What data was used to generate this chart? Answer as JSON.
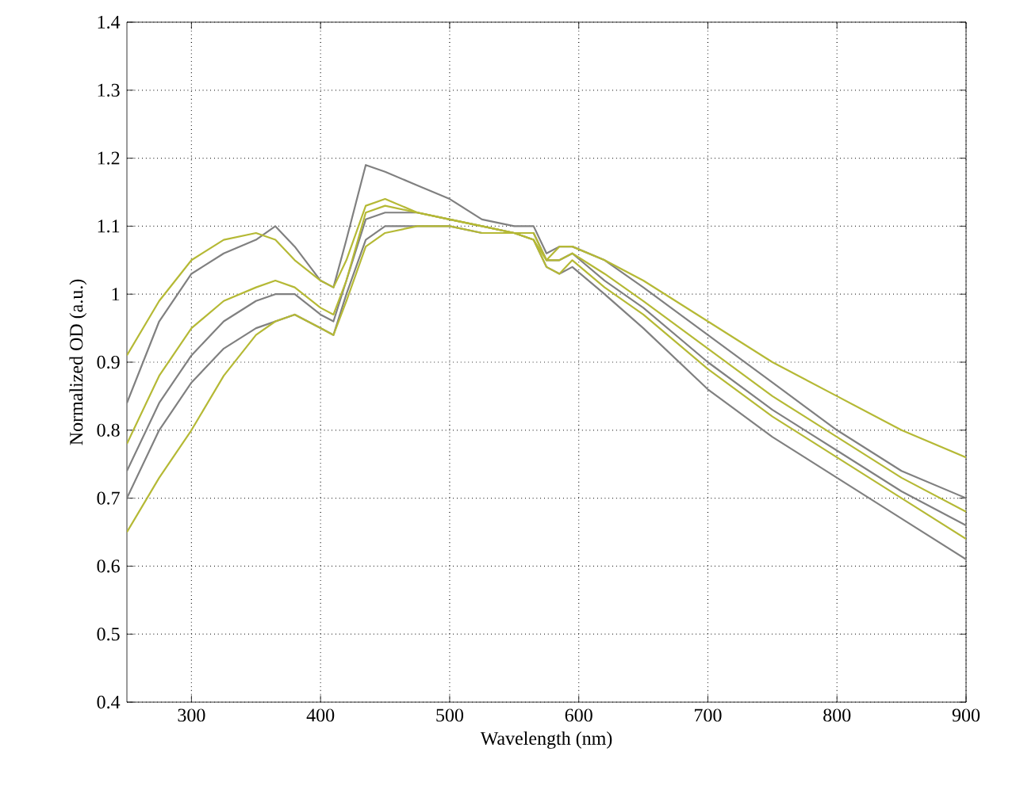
{
  "chart_data": {
    "type": "line",
    "xlabel": "Wavelength (nm)",
    "ylabel": "Normalized OD (a.u.)",
    "x": [
      250,
      275,
      300,
      325,
      350,
      365,
      380,
      400,
      410,
      420,
      435,
      450,
      475,
      500,
      525,
      550,
      565,
      575,
      585,
      595,
      620,
      650,
      700,
      750,
      800,
      850,
      900
    ],
    "series": [
      {
        "color": "#808080",
        "values": [
          0.84,
          0.96,
          1.03,
          1.06,
          1.08,
          1.1,
          1.07,
          1.02,
          1.01,
          1.08,
          1.19,
          1.18,
          1.16,
          1.14,
          1.11,
          1.1,
          1.1,
          1.06,
          1.07,
          1.07,
          1.05,
          1.01,
          0.94,
          0.87,
          0.8,
          0.74,
          0.7
        ]
      },
      {
        "color": "#808080",
        "values": [
          0.74,
          0.84,
          0.91,
          0.96,
          0.99,
          1.0,
          1.0,
          0.97,
          0.96,
          1.02,
          1.11,
          1.12,
          1.12,
          1.11,
          1.1,
          1.09,
          1.09,
          1.05,
          1.05,
          1.06,
          1.02,
          0.98,
          0.9,
          0.83,
          0.77,
          0.71,
          0.66
        ]
      },
      {
        "color": "#808080",
        "values": [
          0.7,
          0.8,
          0.87,
          0.92,
          0.95,
          0.96,
          0.97,
          0.95,
          0.94,
          1.0,
          1.08,
          1.1,
          1.1,
          1.1,
          1.09,
          1.09,
          1.08,
          1.04,
          1.03,
          1.04,
          1.0,
          0.95,
          0.86,
          0.79,
          0.73,
          0.67,
          0.61
        ]
      },
      {
        "color": "#b5b935",
        "values": [
          0.91,
          0.99,
          1.05,
          1.08,
          1.09,
          1.08,
          1.05,
          1.02,
          1.01,
          1.05,
          1.13,
          1.14,
          1.12,
          1.11,
          1.1,
          1.09,
          1.08,
          1.05,
          1.07,
          1.07,
          1.05,
          1.02,
          0.96,
          0.9,
          0.85,
          0.8,
          0.76
        ]
      },
      {
        "color": "#b5b935",
        "values": [
          0.78,
          0.88,
          0.95,
          0.99,
          1.01,
          1.02,
          1.01,
          0.98,
          0.97,
          1.02,
          1.12,
          1.13,
          1.12,
          1.11,
          1.1,
          1.09,
          1.09,
          1.05,
          1.05,
          1.06,
          1.03,
          0.99,
          0.92,
          0.85,
          0.79,
          0.73,
          0.68
        ]
      },
      {
        "color": "#b5b935",
        "values": [
          0.65,
          0.73,
          0.8,
          0.88,
          0.94,
          0.96,
          0.97,
          0.95,
          0.94,
          0.99,
          1.07,
          1.09,
          1.1,
          1.1,
          1.09,
          1.09,
          1.08,
          1.04,
          1.03,
          1.05,
          1.01,
          0.97,
          0.89,
          0.82,
          0.76,
          0.7,
          0.64
        ]
      }
    ],
    "xlim": [
      250,
      900
    ],
    "ylim": [
      0.4,
      1.4
    ],
    "xticks": [
      300,
      400,
      500,
      600,
      700,
      800,
      900
    ],
    "yticks": [
      0.4,
      0.5,
      0.6,
      0.7,
      0.8,
      0.9,
      1,
      1.1,
      1.2,
      1.3,
      1.4
    ],
    "grid": true,
    "line_style": "solid",
    "marker": "none"
  }
}
